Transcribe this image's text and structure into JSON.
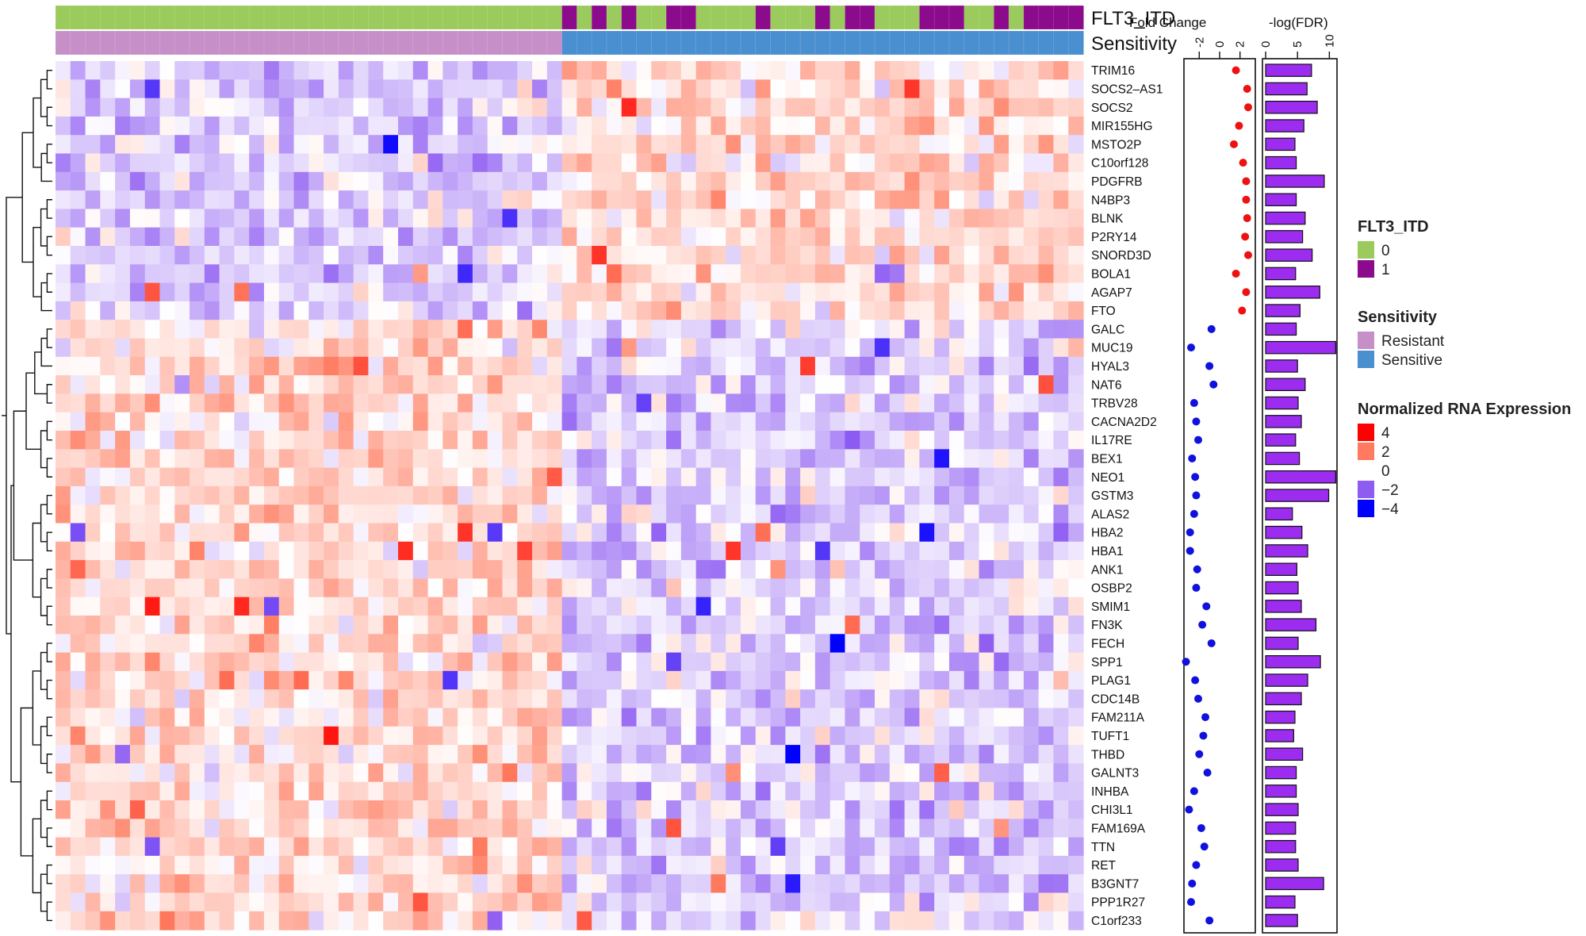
{
  "chart_data": {
    "type": "heatmap",
    "annotations": [
      {
        "name": "FLT3_ITD",
        "values": [
          0,
          0,
          0,
          0,
          0,
          0,
          0,
          0,
          0,
          0,
          0,
          0,
          0,
          0,
          0,
          0,
          0,
          0,
          0,
          0,
          0,
          0,
          0,
          0,
          0,
          0,
          0,
          0,
          0,
          0,
          0,
          0,
          0,
          0,
          1,
          0,
          1,
          0,
          1,
          0,
          0,
          1,
          1,
          0,
          0,
          0,
          0,
          1,
          0,
          0,
          0,
          1,
          0,
          1,
          1,
          0,
          0,
          0,
          1,
          1,
          1,
          0,
          0,
          1,
          0,
          1,
          1,
          1,
          1
        ]
      },
      {
        "name": "Sensitivity",
        "values": [
          "Resistant",
          "Resistant",
          "Resistant",
          "Resistant",
          "Resistant",
          "Resistant",
          "Resistant",
          "Resistant",
          "Resistant",
          "Resistant",
          "Resistant",
          "Resistant",
          "Resistant",
          "Resistant",
          "Resistant",
          "Resistant",
          "Resistant",
          "Resistant",
          "Resistant",
          "Resistant",
          "Resistant",
          "Resistant",
          "Resistant",
          "Resistant",
          "Resistant",
          "Resistant",
          "Resistant",
          "Resistant",
          "Resistant",
          "Resistant",
          "Resistant",
          "Resistant",
          "Resistant",
          "Resistant",
          "Sensitive",
          "Sensitive",
          "Sensitive",
          "Sensitive",
          "Sensitive",
          "Sensitive",
          "Sensitive",
          "Sensitive",
          "Sensitive",
          "Sensitive",
          "Sensitive",
          "Sensitive",
          "Sensitive",
          "Sensitive",
          "Sensitive",
          "Sensitive",
          "Sensitive",
          "Sensitive",
          "Sensitive",
          "Sensitive",
          "Sensitive",
          "Sensitive",
          "Sensitive",
          "Sensitive",
          "Sensitive",
          "Sensitive",
          "Sensitive",
          "Sensitive",
          "Sensitive",
          "Sensitive",
          "Sensitive",
          "Sensitive",
          "Sensitive",
          "Sensitive",
          "Sensitive"
        ]
      }
    ],
    "n_samples": 69,
    "n_resistant": 34,
    "genes": [
      "TRIM16",
      "SOCS2–AS1",
      "SOCS2",
      "MIR155HG",
      "MSTO2P",
      "C10orf128",
      "PDGFRB",
      "N4BP3",
      "BLNK",
      "P2RY14",
      "SNORD3D",
      "BOLA1",
      "AGAP7",
      "FTO",
      "GALC",
      "MUC19",
      "HYAL3",
      "NAT6",
      "TRBV28",
      "CACNA2D2",
      "IL17RE",
      "BEX1",
      "NEO1",
      "GSTM3",
      "ALAS2",
      "HBA2",
      "HBA1",
      "ANK1",
      "OSBP2",
      "SMIM1",
      "FN3K",
      "FECH",
      "SPP1",
      "PLAG1",
      "CDC14B",
      "FAM211A",
      "TUFT1",
      "THBD",
      "GALNT3",
      "INHBA",
      "CHI3L1",
      "FAM169A",
      "TTN",
      "RET",
      "B3GNT7",
      "PPP1R27",
      "C1orf233"
    ],
    "n_up_genes": 14,
    "fold_change": {
      "title": "Fold Change",
      "ticks": [
        -2,
        0,
        2
      ],
      "xlim": [
        -3.5,
        3.5
      ],
      "values": [
        1.6,
        2.7,
        2.8,
        1.9,
        1.4,
        2.3,
        2.6,
        2.6,
        2.7,
        2.5,
        2.8,
        1.6,
        2.6,
        2.2,
        -0.8,
        -2.8,
        -1.0,
        -0.6,
        -2.5,
        -2.3,
        -2.1,
        -2.7,
        -2.4,
        -2.3,
        -2.5,
        -2.9,
        -2.9,
        -2.2,
        -2.3,
        -1.3,
        -1.7,
        -0.8,
        -3.3,
        -2.4,
        -2.1,
        -1.4,
        -1.6,
        -2.0,
        -1.2,
        -2.5,
        -3.0,
        -1.8,
        -1.5,
        -2.3,
        -2.7,
        -2.8,
        -1.0
      ]
    },
    "neg_log_fdr": {
      "title": "-log(FDR)",
      "ticks": [
        0,
        5,
        10
      ],
      "xlim": [
        -0.5,
        11.2
      ],
      "values": [
        7.2,
        6.5,
        8.1,
        6.0,
        4.6,
        4.8,
        9.2,
        4.8,
        6.2,
        5.8,
        7.3,
        4.7,
        8.5,
        5.4,
        4.8,
        11.0,
        5.0,
        6.2,
        5.1,
        5.6,
        4.7,
        5.3,
        11.0,
        9.9,
        4.2,
        5.7,
        6.6,
        4.9,
        5.1,
        5.6,
        7.9,
        5.1,
        8.6,
        6.6,
        5.6,
        4.6,
        4.4,
        5.8,
        4.8,
        4.8,
        5.1,
        4.7,
        4.7,
        5.1,
        9.1,
        4.6,
        5.0
      ]
    },
    "legend": {
      "flt3": {
        "title": "FLT3_ITD",
        "items": [
          "0",
          "1"
        ],
        "colors": [
          "#9ACB5C",
          "#8C0A8C"
        ]
      },
      "sensitivity": {
        "title": "Sensitivity",
        "items": [
          "Resistant",
          "Sensitive"
        ],
        "colors": [
          "#C68FC8",
          "#4A8FD0"
        ]
      },
      "expression": {
        "title": "Normalized RNA Expression",
        "items": [
          "4",
          "2",
          "0",
          "−2",
          "−4"
        ],
        "colors": [
          "#FF0000",
          "#FF7A5E",
          "#FFFFFF",
          "#8E5CF2",
          "#0000FF"
        ]
      }
    },
    "dot_colors": {
      "up": "#EE1111",
      "down": "#1111DD"
    },
    "bar_color": "#9B2CF0"
  }
}
